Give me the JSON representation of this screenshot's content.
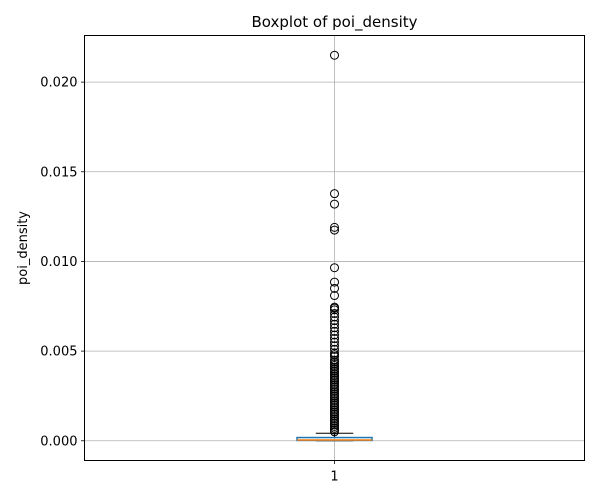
{
  "chart_data": {
    "type": "boxplot",
    "title": "Boxplot of poi_density",
    "xlabel": "",
    "ylabel": "poi_density",
    "categories": [
      "1"
    ],
    "ylim": [
      -0.0011,
      0.0226
    ],
    "yticks": [
      0.0,
      0.005,
      0.01,
      0.015,
      0.02
    ],
    "ytick_labels": [
      "0.000",
      "0.005",
      "0.010",
      "0.015",
      "0.020"
    ],
    "grid": true,
    "box": {
      "q1": 2e-05,
      "median": 4e-05,
      "q3": 0.00018,
      "whisker_low": 0.0,
      "whisker_high": 0.00042
    },
    "outliers": [
      0.0215,
      0.01378,
      0.0132,
      0.0119,
      0.01175,
      0.00965,
      0.00885,
      0.0085,
      0.0081,
      0.00745,
      0.0074,
      0.0073,
      0.0071,
      0.0069,
      0.0067,
      0.0065,
      0.0063,
      0.0061,
      0.0059,
      0.0057,
      0.0055,
      0.0053,
      0.0051,
      0.0049,
      0.0048,
      0.0047,
      0.0045,
      0.0044,
      0.0043,
      0.0042,
      0.0041,
      0.004,
      0.0039,
      0.0038,
      0.0037,
      0.0036,
      0.0035,
      0.0034,
      0.0033,
      0.0032,
      0.0031,
      0.003,
      0.0029,
      0.0028,
      0.0027,
      0.0026,
      0.0025,
      0.0024,
      0.0023,
      0.0022,
      0.0021,
      0.002,
      0.0019,
      0.0018,
      0.0017,
      0.0016,
      0.0015,
      0.0014,
      0.0013,
      0.0012,
      0.0011,
      0.001,
      0.0009,
      0.0008,
      0.0007,
      0.0006,
      0.0005
    ],
    "colors": {
      "box": "#1f77b4",
      "median": "#ff7f0e",
      "grid": "#b0b0b0",
      "outlier": "#000000"
    }
  }
}
